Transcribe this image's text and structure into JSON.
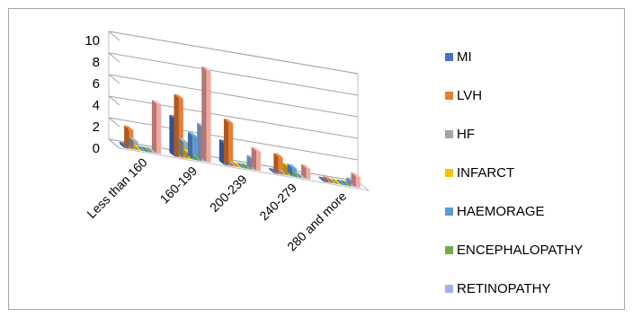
{
  "chart_data": {
    "type": "bar",
    "style": "3d-clustered-column",
    "title": "",
    "xlabel": "",
    "ylabel": "",
    "ylim": [
      0,
      10
    ],
    "yticks": [
      0,
      2,
      4,
      6,
      8,
      10
    ],
    "grid": true,
    "legend_position": "right",
    "categories": [
      "Less than 160",
      "160-199",
      "200-239",
      "240-279",
      "280 and more"
    ],
    "series": [
      {
        "name": "MI",
        "color": "#4472C4",
        "values": [
          0.2,
          3.5,
          2.0,
          0.0,
          0.1
        ]
      },
      {
        "name": "LVH",
        "color": "#ED7D31",
        "values": [
          1.8,
          5.5,
          4.0,
          1.6,
          0.2
        ]
      },
      {
        "name": "HF",
        "color": "#A5A5A5",
        "values": [
          0.8,
          1.5,
          0.0,
          0.0,
          0.0
        ]
      },
      {
        "name": "INFARCT",
        "color": "#FFC000",
        "values": [
          0.1,
          0.5,
          0.0,
          0.8,
          0.0
        ]
      },
      {
        "name": "HAEMORAGE",
        "color": "#5B9BD5",
        "values": [
          0.0,
          2.2,
          0.0,
          0.8,
          0.0
        ]
      },
      {
        "name": "ENCEPHALOPATHY",
        "color": "#70AD47",
        "values": [
          0.0,
          0.0,
          0.0,
          0.0,
          0.0
        ]
      },
      {
        "name": "RETINOPATHY",
        "color": "#9DB4E6",
        "values": [
          0.0,
          3.2,
          1.0,
          0.0,
          0.5
        ]
      },
      {
        "name": "",
        "color": "#F4A79D",
        "values": [
          4.6,
          8.5,
          1.8,
          1.0,
          1.0
        ]
      }
    ]
  }
}
